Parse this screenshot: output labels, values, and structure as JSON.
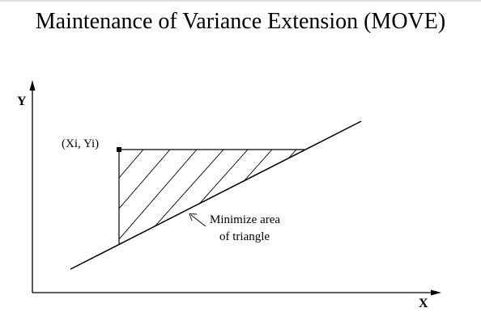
{
  "title": "Maintenance of Variance Extension (MOVE)",
  "axes": {
    "y_label": "Y",
    "x_label": "X"
  },
  "point_label": "(Xi, Yi)",
  "annotation": {
    "line1": "Minimize area",
    "line2": "of triangle"
  },
  "colors": {
    "ink": "#000000",
    "background": "#ffffff"
  }
}
